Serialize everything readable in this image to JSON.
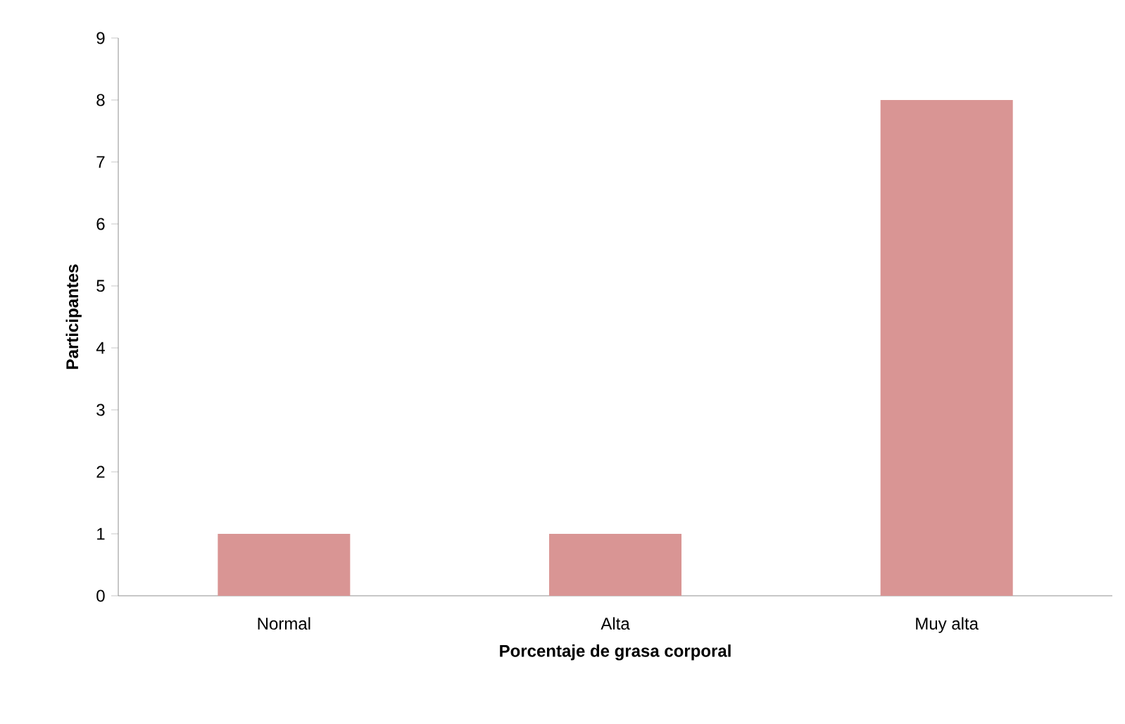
{
  "chart_data": {
    "type": "bar",
    "xlabel": "Porcentaje de grasa corporal",
    "ylabel": "Participantes",
    "categories": [
      "Normal",
      "Alta",
      "Muy alta"
    ],
    "values": [
      1,
      1,
      8
    ],
    "color": "#d99594",
    "ylim": [
      0,
      9
    ],
    "yticks": [
      0,
      1,
      2,
      3,
      4,
      5,
      6,
      7,
      8,
      9
    ],
    "grid": false
  }
}
